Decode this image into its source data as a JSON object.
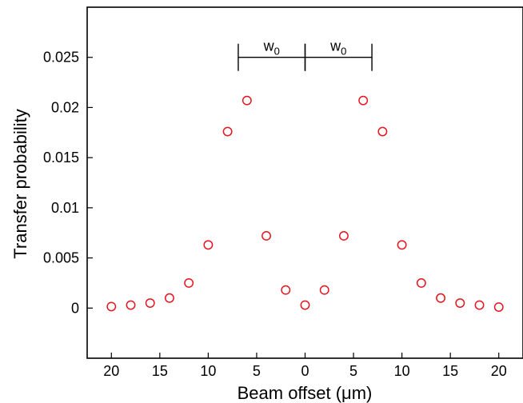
{
  "chart_data": {
    "type": "scatter",
    "title": "",
    "xlabel": "Beam offset (μm)",
    "ylabel": "Transfer probability",
    "xlim": [
      -22.5,
      22.5
    ],
    "ylim": [
      -0.005,
      0.03
    ],
    "x_tick_values": [
      -20,
      -15,
      -10,
      -5,
      0,
      5,
      10,
      15,
      20
    ],
    "x_tick_labels": [
      "20",
      "15",
      "10",
      "5",
      "0",
      "5",
      "10",
      "15",
      "20"
    ],
    "y_tick_values": [
      0,
      0.005,
      0.01,
      0.015,
      0.02,
      0.025
    ],
    "y_tick_labels": [
      "0",
      "0.005",
      "0.01",
      "0.015",
      "0.02",
      "0.025"
    ],
    "grid": false,
    "marker": "open-circle",
    "marker_color": "#e8141e",
    "x": [
      -20,
      -18,
      -16,
      -14,
      -12,
      -10,
      -8,
      -6,
      -4,
      -2,
      0,
      2,
      4,
      6,
      8,
      10,
      12,
      14,
      16,
      18,
      20
    ],
    "y": [
      0.00015,
      0.0003,
      0.0005,
      0.001,
      0.0025,
      0.0063,
      0.0176,
      0.0207,
      0.0072,
      0.0018,
      0.0003,
      0.0018,
      0.0072,
      0.0207,
      0.0176,
      0.0063,
      0.0025,
      0.001,
      0.0005,
      0.0003,
      0.0001
    ],
    "annotations": [
      {
        "label": "w",
        "subscript": "0",
        "x_start": -6.9,
        "x_end": 0,
        "y": 0.025
      },
      {
        "label": "w",
        "subscript": "0",
        "x_start": 0,
        "x_end": 6.9,
        "y": 0.025
      }
    ]
  }
}
